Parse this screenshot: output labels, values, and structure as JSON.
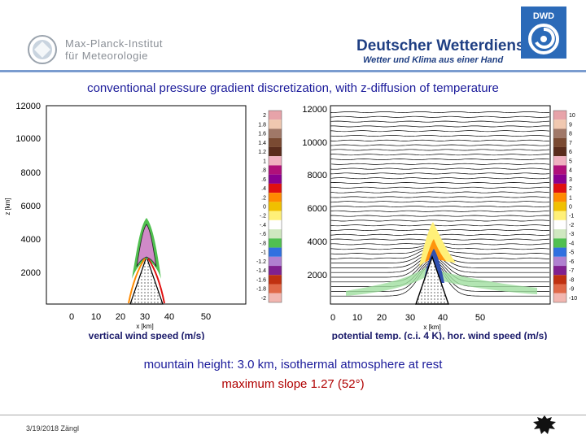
{
  "header": {
    "mpi_name": "Max-Planck-Institut",
    "mpi_sub": "für Meteorologie",
    "dwd_name": "Deutscher Wetterdienst",
    "dwd_slogan": "Wetter und Klima aus einer Hand",
    "dwd_badge": "DWD"
  },
  "title": "conventional pressure gradient discretization, with z-diffusion of temperature",
  "left_panel": {
    "y_axis_title": "z [km]",
    "x_axis_title": "x [km]",
    "y_ticks": [
      "12000",
      "10000",
      "8000",
      "6000",
      "4000",
      "2000"
    ],
    "x_ticks": [
      "0",
      "10",
      "20",
      "30",
      "40",
      "50"
    ],
    "colorbar_labels": [
      "2",
      "1.8",
      "1.6",
      "1.4",
      "1.2",
      "1",
      ".8",
      ".6",
      ".4",
      ".2",
      "0",
      "-.2",
      "-.4",
      "-.6",
      "-.8",
      "-1",
      "-1.2",
      "-1.4",
      "-1.6",
      "-1.8",
      "-2"
    ],
    "caption": "vertical wind speed (m/s)"
  },
  "right_panel": {
    "x_axis_title": "x [km]",
    "y_ticks": [
      "12000",
      "10000",
      "8000",
      "6000",
      "4000",
      "2000"
    ],
    "x_ticks": [
      "0",
      "10",
      "20",
      "30",
      "40",
      "50"
    ],
    "colorbar_labels": [
      "10",
      "9",
      "8",
      "7",
      "6",
      "5",
      "4",
      "3",
      "2",
      "1",
      "0",
      "-1",
      "-2",
      "-3",
      "-4",
      "-5",
      "-6",
      "-7",
      "-8",
      "-9",
      "-10"
    ],
    "caption": "potential temp. (c.i. 4 K), hor. wind speed (m/s)"
  },
  "summary_line1": "mountain height: 3.0 km, isothermal atmosphere at rest",
  "summary_line2": "maximum slope 1.27 (52°)",
  "footer": {
    "date_author": "3/19/2018 Zängl"
  },
  "colors": {
    "title": "#1a1a9a",
    "highlight": "#b00000",
    "dwd_blue": "#1f3f83",
    "colorbar": [
      "#e7a3a9",
      "#f0c8b0",
      "#a07868",
      "#7a4a32",
      "#5a2c1c",
      "#f0b0c0",
      "#b0107a",
      "#8a0090",
      "#e01010",
      "#ff8a00",
      "#f0c000",
      "#fff078",
      "#ffffff",
      "#cfe8c0",
      "#50c050",
      "#3070e0",
      "#b080d0",
      "#802090",
      "#c03010",
      "#e06848",
      "#f2b6b0"
    ]
  }
}
